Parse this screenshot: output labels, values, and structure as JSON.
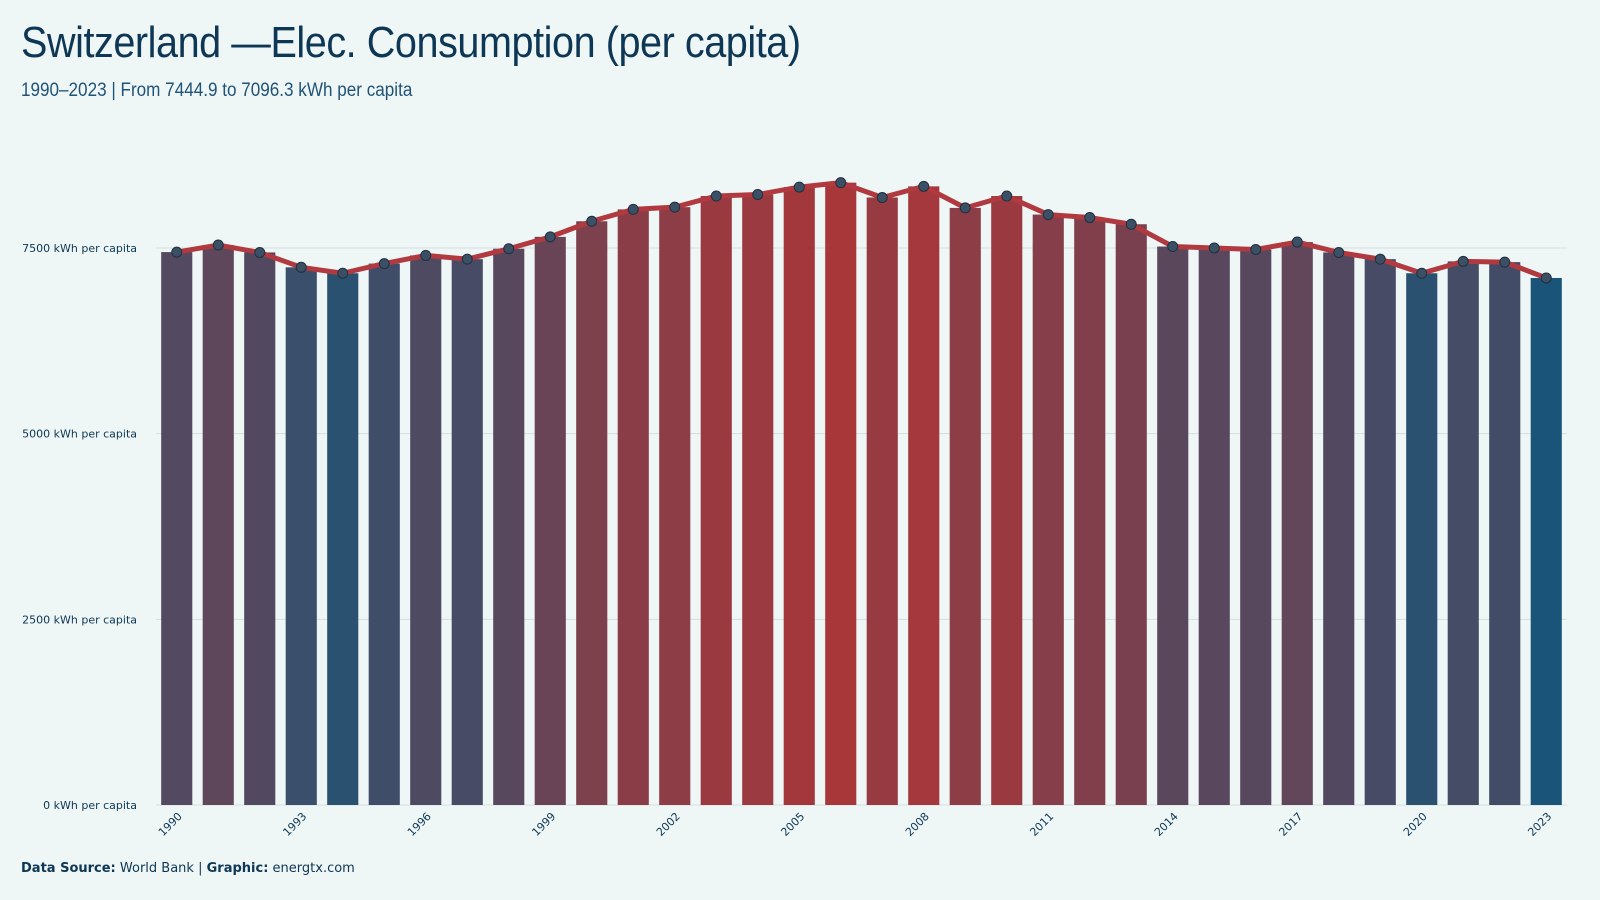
{
  "header": {
    "title": "Switzerland —Elec. Consumption (per capita)",
    "subtitle": "1990–2023 | From 7444.9 to 7096.3 kWh per capita"
  },
  "footer": {
    "source_label": "Data Source:",
    "source_value": "World Bank",
    "separator": "|",
    "graphic_label": "Graphic:",
    "graphic_value": "energtx.com"
  },
  "colors": {
    "background": "#eff6f6",
    "title": "#0d3754",
    "subtitle": "#1f5377",
    "line": "#b03a3f",
    "bar_low": "#1a5579",
    "bar_high": "#a8373a",
    "marker": "#3c5065",
    "grid": "#d6dde0",
    "axis_text": "#0d3754"
  },
  "chart_data": {
    "type": "bar",
    "ylim": [
      0,
      8400
    ],
    "y_ticks": [
      0,
      2500,
      5000,
      7500
    ],
    "y_tick_labels": [
      "0 kWh per capita",
      "2500 kWh per capita",
      "5000 kWh per capita",
      "7500 kWh per capita"
    ],
    "x_tick_labels": [
      "1990",
      "1993",
      "1996",
      "1999",
      "2002",
      "2005",
      "2008",
      "2011",
      "2014",
      "2017",
      "2020",
      "2023"
    ],
    "x": [
      1990,
      1991,
      1992,
      1993,
      1994,
      1995,
      1996,
      1997,
      1998,
      1999,
      2000,
      2001,
      2002,
      2003,
      2004,
      2005,
      2006,
      2007,
      2008,
      2009,
      2010,
      2011,
      2012,
      2013,
      2014,
      2015,
      2016,
      2017,
      2018,
      2019,
      2020,
      2021,
      2022,
      2023
    ],
    "values": [
      7444.9,
      7540,
      7440,
      7240,
      7160,
      7290,
      7400,
      7350,
      7490,
      7650,
      7860,
      8020,
      8050,
      8200,
      8220,
      8320,
      8380,
      8180,
      8330,
      8040,
      8200,
      7950,
      7910,
      7820,
      7520,
      7500,
      7480,
      7580,
      7440,
      7350,
      7160,
      7320,
      7310,
      7096.3
    ],
    "grid": true,
    "legend": "none"
  }
}
